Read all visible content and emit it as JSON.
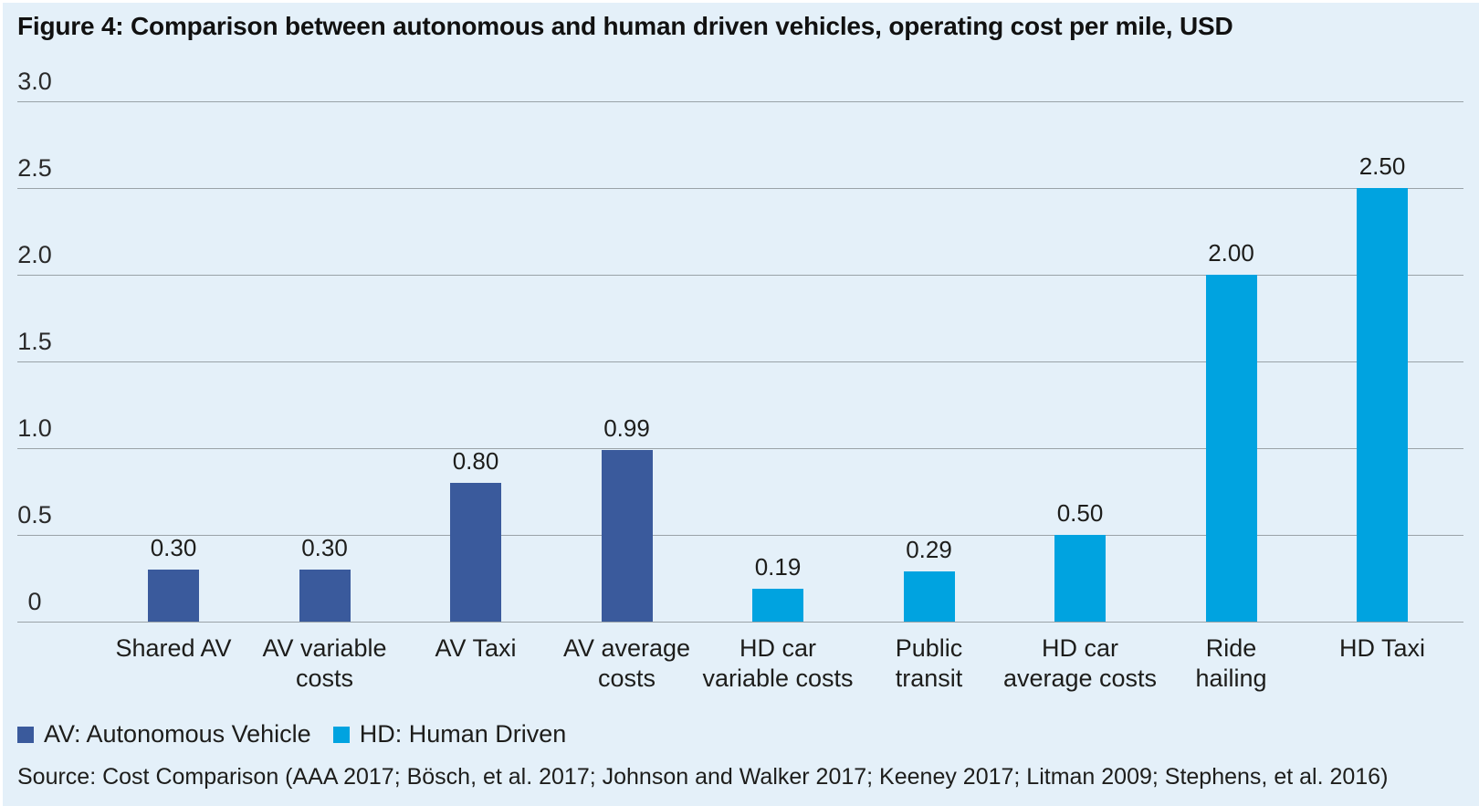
{
  "title": "Figure 4: Comparison between autonomous and human driven vehicles, operating cost per mile, USD",
  "colors": {
    "background": "#e4f0f9",
    "av_dark_blue": "#3a5a9c",
    "hd_light_blue": "#00a3e0",
    "gridline": "#9aa3a8",
    "text": "#1d1d1b"
  },
  "chart_data": {
    "type": "bar",
    "title": "Figure 4: Comparison between autonomous and human driven vehicles, operating cost per mile, USD",
    "categories": [
      "Shared AV",
      "AV variable costs",
      "AV Taxi",
      "AV average costs",
      "HD car variable costs",
      "Public transit",
      "HD car average costs",
      "Ride hailing",
      "HD Taxi"
    ],
    "category_lines": [
      [
        "Shared AV"
      ],
      [
        "AV variable",
        "costs"
      ],
      [
        "AV Taxi"
      ],
      [
        "AV average",
        "costs"
      ],
      [
        "HD car",
        "variable costs"
      ],
      [
        "Public",
        "transit"
      ],
      [
        "HD car",
        "average costs"
      ],
      [
        "Ride",
        "hailing"
      ],
      [
        "HD Taxi"
      ]
    ],
    "values": [
      0.3,
      0.3,
      0.8,
      0.99,
      0.19,
      0.29,
      0.5,
      2.0,
      2.5
    ],
    "value_labels": [
      "0.30",
      "0.30",
      "0.80",
      "0.99",
      "0.19",
      "0.29",
      "0.50",
      "2.00",
      "2.50"
    ],
    "bar_groups": [
      "AV",
      "AV",
      "AV",
      "AV",
      "HD",
      "HD",
      "HD",
      "HD",
      "HD"
    ],
    "series": [
      {
        "name": "AV: Autonomous Vehicle",
        "key": "AV",
        "color": "#3a5a9c",
        "values": [
          0.3,
          0.3,
          0.8,
          0.99,
          null,
          null,
          null,
          null,
          null
        ]
      },
      {
        "name": "HD: Human Driven",
        "key": "HD",
        "color": "#00a3e0",
        "values": [
          null,
          null,
          null,
          null,
          0.19,
          0.29,
          0.5,
          2.0,
          2.5
        ]
      }
    ],
    "xlabel": "",
    "ylabel": "",
    "ylim": [
      0,
      3.0
    ],
    "yticks": [
      3.0,
      2.5,
      2.0,
      1.5,
      1.0,
      0.5,
      0
    ],
    "ytick_labels": [
      "3.0",
      "2.5",
      "2.0",
      "1.5",
      "1.0",
      "0.5",
      "0"
    ],
    "grid": true,
    "legend_position": "bottom-left"
  },
  "legend": {
    "items": [
      {
        "label": "AV: Autonomous Vehicle",
        "group": "AV",
        "color": "#3a5a9c"
      },
      {
        "label": "HD: Human Driven",
        "group": "HD",
        "color": "#00a3e0"
      }
    ]
  },
  "source": "Source: Cost Comparison (AAA 2017; Bösch, et al. 2017; Johnson and Walker 2017; Keeney 2017; Litman 2009; Stephens, et al. 2016)"
}
